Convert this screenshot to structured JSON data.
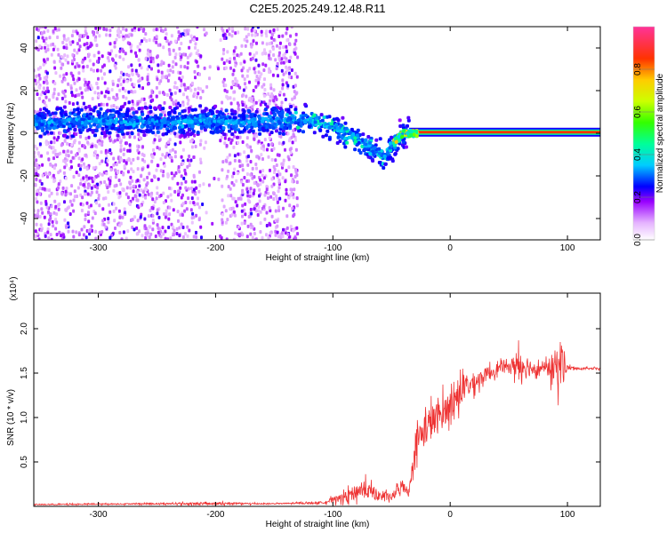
{
  "chart_data": [
    {
      "type": "heatmap",
      "title": "C2E5.2025.249.12.48.R11",
      "xlabel": "Height of straight line (km)",
      "ylabel": "Frequency (Hz)",
      "xlim": [
        -355,
        128
      ],
      "ylim": [
        -50,
        50
      ],
      "xticks": [
        -300,
        -200,
        -100,
        0,
        100
      ],
      "yticks": [
        -40,
        -20,
        0,
        20,
        40
      ],
      "ridge": {
        "x": [
          -355,
          -300,
          -270,
          -250,
          -210,
          -180,
          -150,
          -120,
          -100,
          -80,
          -65,
          -55,
          -50,
          -45,
          -40,
          -30,
          -20,
          -10,
          0,
          10,
          30,
          60,
          90,
          128
        ],
        "y": [
          5,
          6,
          5,
          5,
          6,
          5,
          6,
          6,
          3,
          -3,
          -8,
          -11,
          -6,
          -3,
          0,
          0,
          1,
          1,
          1,
          0.5,
          0.5,
          0.5,
          0.5,
          0.5
        ]
      },
      "stable_line_start_x": -35,
      "colorbar": {
        "label": "Normalized spectral amplitude",
        "range": [
          0,
          1
        ],
        "ticks": [
          "0.0",
          "0.2",
          "0.4",
          "0.6",
          "0.8"
        ]
      }
    },
    {
      "type": "line",
      "xlabel": "Height of straight line (km)",
      "ylabel": "SNR (10 * v/v)",
      "scale_label": "(x10⁴)",
      "xlim": [
        -355,
        128
      ],
      "ylim": [
        0,
        2.4
      ],
      "xticks": [
        -300,
        -200,
        -100,
        0,
        100
      ],
      "yticks": [
        "0.5",
        "1.0",
        "1.5",
        "2.0"
      ],
      "series_color": "#ee3333",
      "envelope": {
        "x": [
          -355,
          -250,
          -200,
          -150,
          -110,
          -90,
          -75,
          -60,
          -50,
          -40,
          -35,
          -30,
          -20,
          -10,
          0,
          10,
          20,
          30,
          40,
          50,
          60,
          70,
          80,
          90,
          95,
          100,
          110,
          128
        ],
        "base": [
          0.02,
          0.03,
          0.03,
          0.03,
          0.04,
          0.1,
          0.2,
          0.12,
          0.1,
          0.25,
          0.15,
          0.7,
          0.9,
          1.0,
          1.15,
          1.3,
          1.4,
          1.48,
          1.55,
          1.58,
          1.6,
          1.56,
          1.55,
          1.57,
          1.62,
          1.56,
          1.55,
          1.55
        ],
        "noise": [
          0.01,
          0.015,
          0.03,
          0.01,
          0.02,
          0.1,
          0.2,
          0.1,
          0.08,
          0.15,
          0.1,
          0.3,
          0.4,
          0.35,
          0.3,
          0.3,
          0.2,
          0.15,
          0.12,
          0.08,
          0.4,
          0.15,
          0.08,
          0.4,
          0.6,
          0.05,
          0.02,
          0.02
        ]
      }
    }
  ]
}
